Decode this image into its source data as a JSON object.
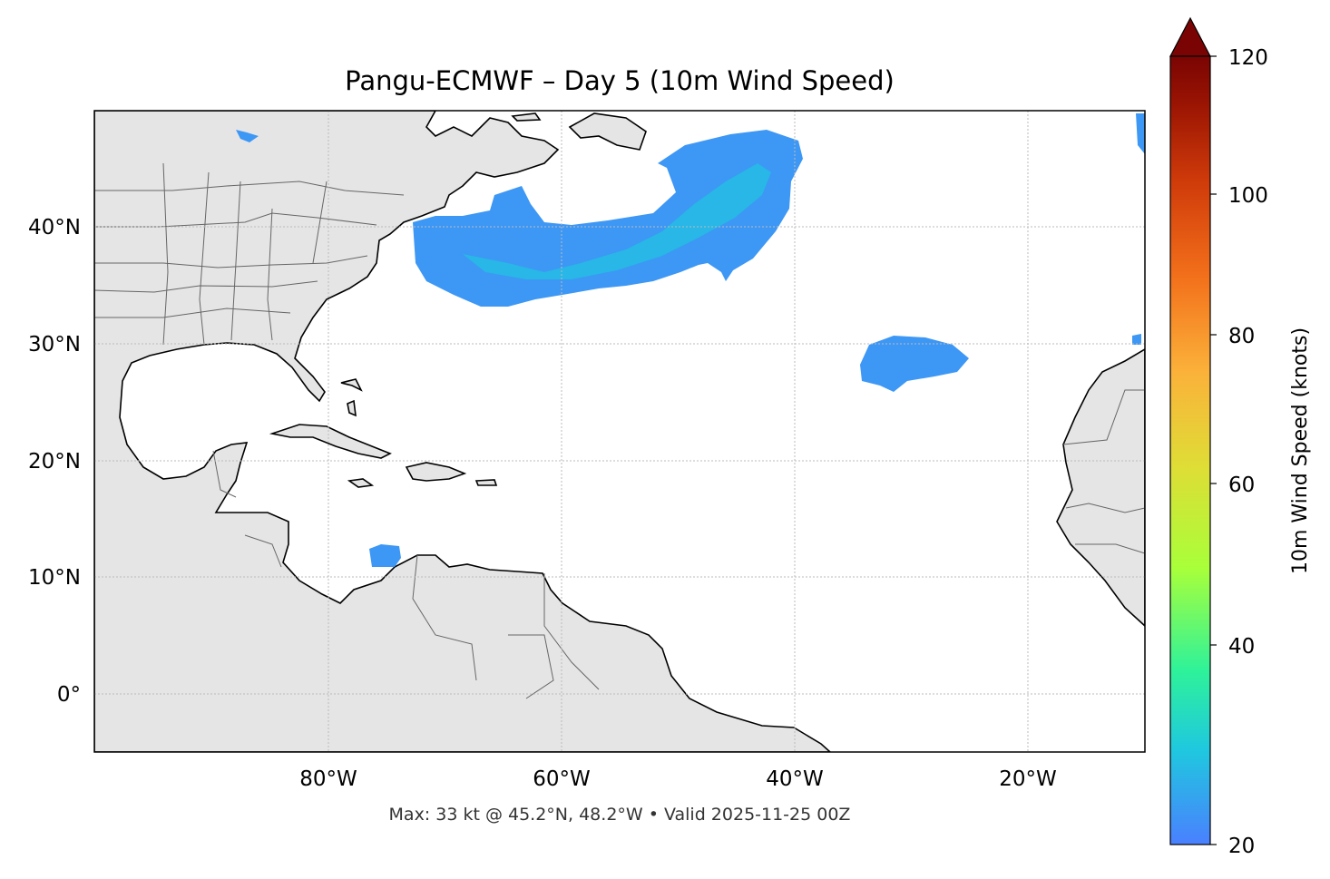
{
  "title": "Pangu-ECMWF – Day 5 (10m Wind Speed)",
  "footer": "Max: 33 kt @ 45.2°N, 48.2°W • Valid 2025-11-25 00Z",
  "lat_labels": [
    "40°N",
    "30°N",
    "20°N",
    "10°N",
    "0°"
  ],
  "lon_labels": [
    "80°W",
    "60°W",
    "40°W",
    "20°W"
  ],
  "colorbar": {
    "label": "10m Wind Speed (knots)",
    "ticks": [
      "120",
      "100",
      "80",
      "60",
      "40",
      "20"
    ],
    "range": [
      20,
      120
    ],
    "extend": "max",
    "colors": [
      "#4a80ff",
      "#1fc8df",
      "#2ef29a",
      "#a8ff3a",
      "#dfdd36",
      "#fbb13a",
      "#f3701b",
      "#d03b0a",
      "#9a1403",
      "#7a0403"
    ]
  },
  "map": {
    "lon_range": [
      -100,
      -10
    ],
    "lat_range": [
      -5,
      50
    ],
    "land_color": "#e5e5e5",
    "wind_color": "#3d97f5",
    "wind_core_color": "#22bfe0"
  }
}
